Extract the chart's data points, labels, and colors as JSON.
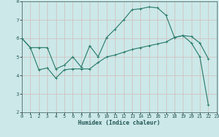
{
  "xlabel": "Humidex (Indice chaleur)",
  "bg_color": "#cce8e8",
  "grid_color": "#aad4d4",
  "line_color": "#2d7d6e",
  "line1_x": [
    0,
    1,
    2,
    3,
    4,
    5,
    6,
    7,
    8,
    9,
    10,
    11,
    12,
    13,
    14,
    15,
    16,
    17,
    18,
    19,
    20,
    21,
    22
  ],
  "line1_y": [
    6.0,
    5.5,
    5.5,
    5.5,
    4.35,
    4.55,
    5.0,
    4.45,
    5.6,
    5.0,
    6.05,
    6.5,
    7.0,
    7.55,
    7.6,
    7.7,
    7.65,
    7.25,
    6.05,
    6.15,
    5.75,
    5.0,
    2.4
  ],
  "line2_x": [
    0,
    1,
    2,
    3,
    4,
    5,
    6,
    7,
    8,
    9,
    10,
    11,
    12,
    13,
    14,
    15,
    16,
    17,
    18,
    19,
    20,
    21,
    22
  ],
  "line2_y": [
    6.0,
    5.5,
    4.3,
    4.4,
    3.85,
    4.3,
    4.35,
    4.35,
    4.35,
    4.7,
    5.0,
    5.1,
    5.25,
    5.4,
    5.5,
    5.6,
    5.7,
    5.8,
    6.05,
    6.15,
    6.1,
    5.75,
    4.9
  ],
  "xlim": [
    0,
    23
  ],
  "ylim": [
    2,
    8
  ],
  "yticks": [
    2,
    3,
    4,
    5,
    6,
    7,
    8
  ],
  "xticks": [
    0,
    1,
    2,
    3,
    4,
    5,
    6,
    7,
    8,
    9,
    10,
    11,
    12,
    13,
    14,
    15,
    16,
    17,
    18,
    19,
    20,
    21,
    22,
    23
  ]
}
